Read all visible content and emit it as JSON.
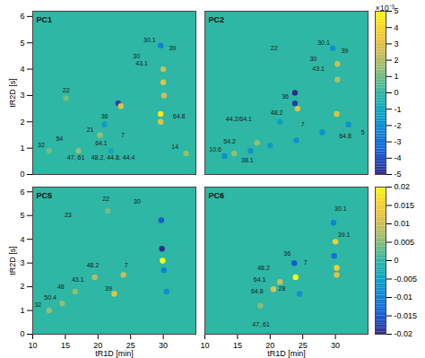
{
  "chart_data": [
    {
      "type": "heatmap",
      "title": "PC1",
      "y_label": "tR2D [s]",
      "tick_labels": "y",
      "xlim": [
        10,
        35
      ],
      "xticks": [
        10,
        15,
        20,
        25,
        30
      ],
      "ylim": [
        0,
        6.2
      ],
      "yticks": [
        0,
        1,
        2,
        3,
        4,
        5,
        6
      ],
      "peaks": {
        "x": [
          29.6,
          30.0,
          30.0,
          30.1,
          29.6,
          29.6,
          23.1,
          23.5,
          21.0,
          20.3,
          15.1,
          12.5,
          22.0,
          33.5,
          17.0
        ],
        "y": [
          4.9,
          4.0,
          3.5,
          3.0,
          2.3,
          2.0,
          2.7,
          2.6,
          1.9,
          1.5,
          2.9,
          0.9,
          0.9,
          0.8,
          0.9
        ],
        "values": [
          -2.5,
          2.5,
          3,
          2.5,
          4.5,
          3,
          -4.5,
          3,
          -1.5,
          1.5,
          1,
          1,
          -1,
          1.5,
          1.5
        ]
      },
      "annotations": [
        {
          "text": "30.1",
          "x": 27.9,
          "y": 5.1
        },
        {
          "text": "39",
          "x": 31.4,
          "y": 4.8
        },
        {
          "text": "30",
          "x": 25.9,
          "y": 4.5
        },
        {
          "text": "43.1",
          "x": 26.7,
          "y": 4.2
        },
        {
          "text": "22",
          "x": 15.1,
          "y": 3.2
        },
        {
          "text": "36",
          "x": 21.0,
          "y": 2.2
        },
        {
          "text": "21",
          "x": 18.8,
          "y": 1.7
        },
        {
          "text": "64.1",
          "x": 20.5,
          "y": 1.2
        },
        {
          "text": "7",
          "x": 23.8,
          "y": 1.5
        },
        {
          "text": "47, 61",
          "x": 16.6,
          "y": 0.65
        },
        {
          "text": "48.2, 44.8, 44.4",
          "x": 22.3,
          "y": 0.65
        },
        {
          "text": "64.8",
          "x": 32.4,
          "y": 2.2
        },
        {
          "text": "32",
          "x": 11.3,
          "y": 1.1
        },
        {
          "text": "54",
          "x": 14.1,
          "y": 1.35
        },
        {
          "text": "14",
          "x": 31.8,
          "y": 1.05
        }
      ]
    },
    {
      "type": "heatmap",
      "title": "PC2",
      "tick_labels": false,
      "xlim": [
        10,
        35
      ],
      "xticks": [
        10,
        15,
        20,
        25,
        30
      ],
      "ylim": [
        0,
        6.2
      ],
      "yticks": [
        0,
        1,
        2,
        3,
        4,
        5,
        6
      ],
      "colorbar": {
        "range": [
          -5,
          5
        ],
        "ticks": [
          -5,
          -4,
          -3,
          -2,
          -1,
          0,
          1,
          2,
          3,
          4,
          5
        ],
        "label": "×10⁻³"
      },
      "peaks": {
        "x": [
          23.8,
          23.8,
          24.2,
          30.3,
          30.3,
          30.2,
          21.5,
          13,
          17,
          20,
          24,
          28,
          32,
          14.5,
          18,
          29.6
        ],
        "y": [
          3.1,
          2.7,
          2.5,
          4.2,
          3.6,
          2.3,
          2.0,
          0.7,
          0.9,
          1.1,
          1.3,
          1.6,
          1.9,
          0.8,
          1.2,
          4.8
        ],
        "values": [
          -5,
          -4.5,
          3,
          2.5,
          2,
          3,
          -1.5,
          -2,
          -2,
          -1.5,
          -2,
          -2,
          -2,
          1.5,
          1.5,
          -2
        ]
      },
      "annotations": [
        {
          "text": "22",
          "x": 20.6,
          "y": 4.8
        },
        {
          "text": "30.1",
          "x": 28.2,
          "y": 5.0
        },
        {
          "text": "39",
          "x": 31.4,
          "y": 4.7
        },
        {
          "text": "30",
          "x": 26.6,
          "y": 4.4
        },
        {
          "text": "43.1",
          "x": 27.4,
          "y": 4.0
        },
        {
          "text": "44.2/64.1",
          "x": 15.2,
          "y": 2.1
        },
        {
          "text": "48.2",
          "x": 21.0,
          "y": 2.35
        },
        {
          "text": "36",
          "x": 22.3,
          "y": 2.95
        },
        {
          "text": "7",
          "x": 25.0,
          "y": 1.9
        },
        {
          "text": "64.8",
          "x": 31.5,
          "y": 1.45
        },
        {
          "text": "10.6",
          "x": 11.6,
          "y": 0.95
        },
        {
          "text": "54.2",
          "x": 13.8,
          "y": 1.25
        },
        {
          "text": "38.1",
          "x": 16.5,
          "y": 0.55
        },
        {
          "text": "5",
          "x": 34.2,
          "y": 1.6
        }
      ]
    },
    {
      "type": "heatmap",
      "title": "PC5",
      "x_label": "tR1D [min]",
      "y_label": "tR2D [s]",
      "tick_labels": true,
      "xlim": [
        10,
        35
      ],
      "xticks": [
        10,
        15,
        20,
        25,
        30
      ],
      "ylim": [
        0,
        6.2
      ],
      "yticks": [
        0,
        1,
        2,
        3,
        4,
        5,
        6
      ],
      "peaks": {
        "x": [
          29.7,
          29.8,
          29.9,
          30.1,
          23.9,
          22.5,
          19.5,
          16.5,
          14.5,
          12.5,
          21.5,
          30.5
        ],
        "y": [
          4.8,
          3.6,
          3.1,
          2.7,
          2.5,
          1.7,
          2.4,
          1.8,
          1.3,
          1.0,
          5.2,
          1.8
        ],
        "values": [
          -0.015,
          -0.02,
          0.02,
          -0.01,
          0.01,
          0.012,
          0.008,
          0.006,
          0.006,
          0.006,
          0.004,
          -0.008
        ]
      },
      "annotations": [
        {
          "text": "22",
          "x": 21.2,
          "y": 5.7
        },
        {
          "text": "30",
          "x": 26.0,
          "y": 5.6
        },
        {
          "text": "23",
          "x": 15.4,
          "y": 5.0
        },
        {
          "text": "48.2",
          "x": 19.2,
          "y": 2.9
        },
        {
          "text": "7",
          "x": 24.3,
          "y": 2.9
        },
        {
          "text": "43.1",
          "x": 16.9,
          "y": 2.3
        },
        {
          "text": "48",
          "x": 14.3,
          "y": 2.0
        },
        {
          "text": "39",
          "x": 21.6,
          "y": 1.9
        },
        {
          "text": "32",
          "x": 10.8,
          "y": 1.25
        },
        {
          "text": "50.4",
          "x": 12.7,
          "y": 1.55
        }
      ]
    },
    {
      "type": "heatmap",
      "title": "PC6",
      "x_label": "tR1D [min]",
      "tick_labels": "x",
      "xlim": [
        10,
        35
      ],
      "xticks": [
        10,
        15,
        20,
        25,
        30
      ],
      "ylim": [
        0,
        6.2
      ],
      "yticks": [
        0,
        1,
        2,
        3,
        4,
        5,
        6
      ],
      "colorbar": {
        "range": [
          -0.02,
          0.02
        ],
        "ticks": [
          -0.02,
          -0.015,
          -0.01,
          -0.005,
          0,
          0.005,
          0.01,
          0.015,
          0.02
        ]
      },
      "peaks": {
        "x": [
          29.7,
          30.0,
          29.8,
          30.2,
          30.2,
          23.7,
          23.9,
          21.5,
          20.5,
          18.5,
          24.5
        ],
        "y": [
          4.7,
          3.9,
          3.3,
          2.8,
          2.5,
          3.0,
          2.4,
          2.2,
          1.9,
          1.2,
          1.7
        ],
        "values": [
          -0.01,
          0.015,
          -0.012,
          0.015,
          0.012,
          -0.015,
          0.02,
          0.01,
          0.012,
          0.005,
          -0.008
        ]
      },
      "annotations": [
        {
          "text": "30.1",
          "x": 30.8,
          "y": 5.3
        },
        {
          "text": "39.1",
          "x": 31.3,
          "y": 4.2
        },
        {
          "text": "36",
          "x": 22.6,
          "y": 3.4
        },
        {
          "text": "7",
          "x": 25.4,
          "y": 3.0
        },
        {
          "text": "48.2",
          "x": 19.0,
          "y": 2.8
        },
        {
          "text": "64.1",
          "x": 18.4,
          "y": 2.3
        },
        {
          "text": "64.8",
          "x": 18.0,
          "y": 1.8
        },
        {
          "text": "28",
          "x": 21.8,
          "y": 1.9
        },
        {
          "text": "47, 61",
          "x": 18.6,
          "y": 0.4
        }
      ]
    }
  ]
}
